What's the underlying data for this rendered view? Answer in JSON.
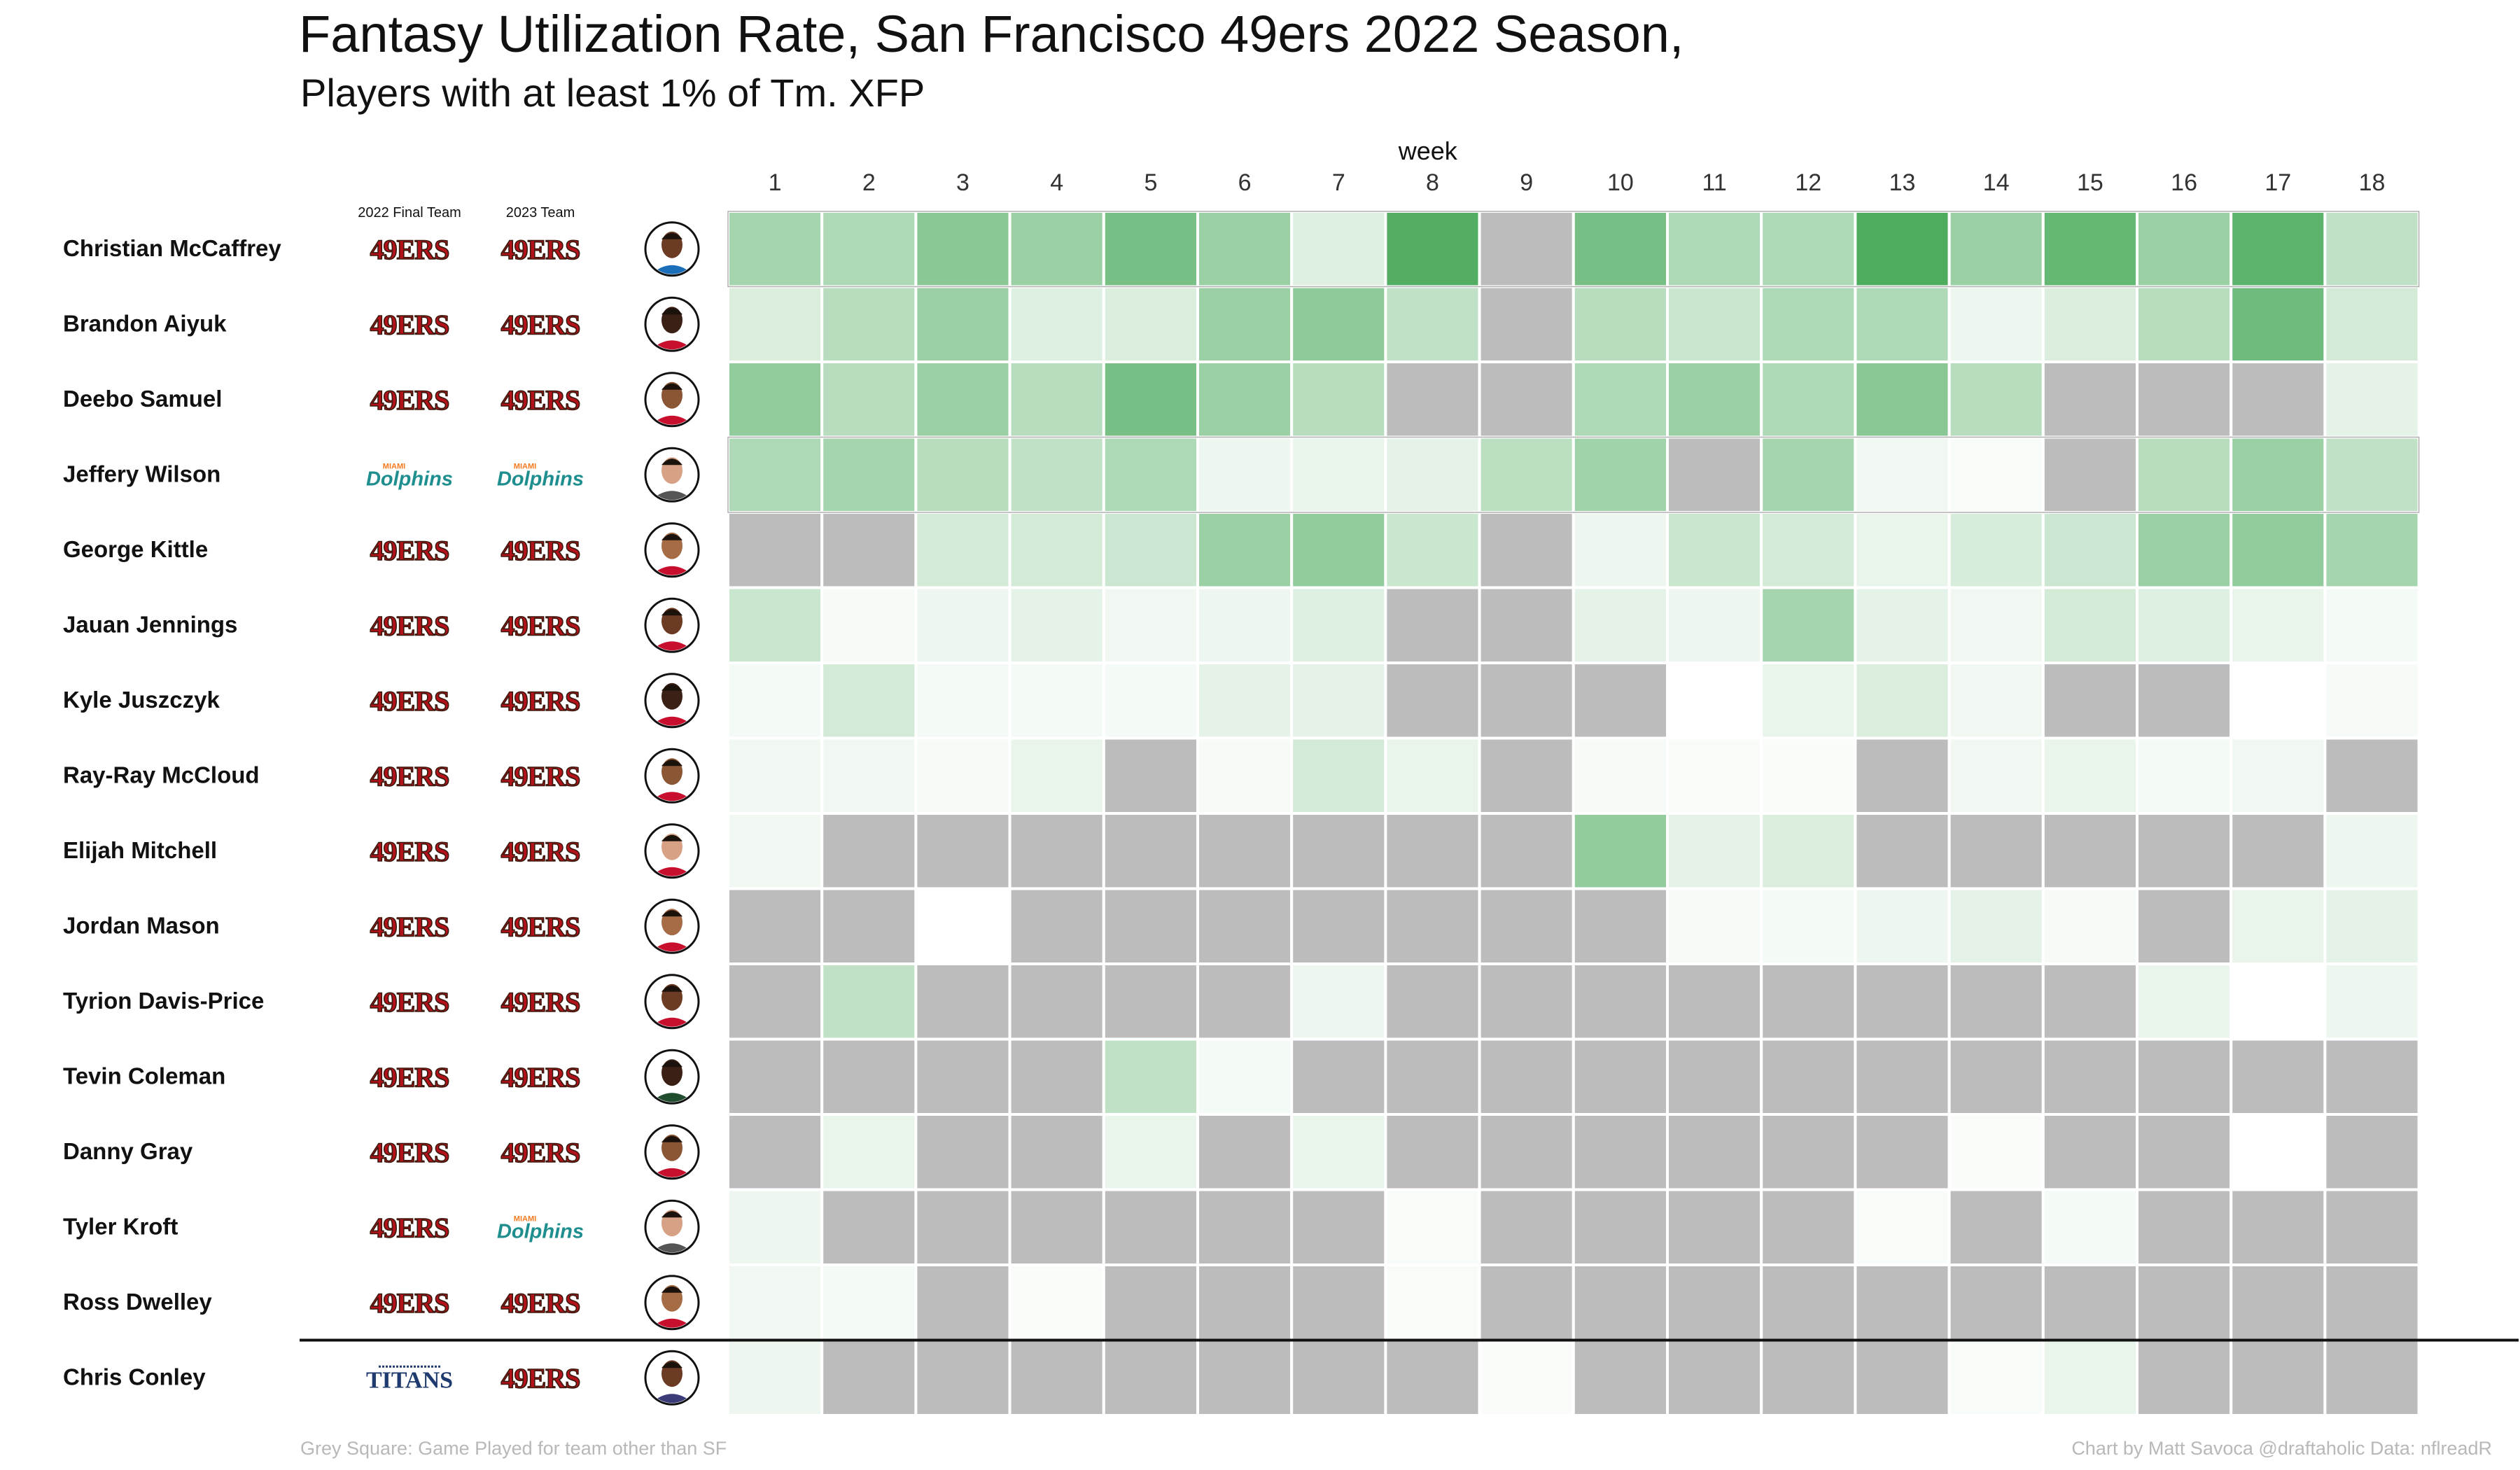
{
  "title": "Fantasy Utilization Rate, San Francisco 49ers 2022 Season,",
  "subtitle": "Players with at least 1% of Tm. XFP",
  "caption_left": "Grey Square: Game Played for team other than SF",
  "caption_right": "Chart by Matt Savoca   @draftaholic   Data: nflreadR",
  "colors": {
    "grey_square": "#bcbcbc",
    "green_low": "#ffffff",
    "green_high": "#4aaa5c",
    "niners_red": "#b3121b",
    "niners_gold": "#3a1a0e",
    "dolphins_teal": "#1e8e8e",
    "dolphins_orange": "#f47a1f",
    "titans_navy": "#1e3a6e"
  },
  "chart_data": {
    "type": "heatmap",
    "x_title": "week",
    "weeks": [
      "1",
      "2",
      "3",
      "4",
      "5",
      "6",
      "7",
      "8",
      "9",
      "10",
      "11",
      "12",
      "13",
      "14",
      "15",
      "16",
      "17",
      "18"
    ],
    "col_header_final": "2022 Final Team",
    "col_header_2023": "2023 Team",
    "value_scale": "utilization intensity 0-1 (estimated from green shading); null = grey square",
    "players": [
      {
        "name": "Christian McCaffrey",
        "team_2022": "49ERS",
        "team_2023": "49ERS",
        "headshot_icon": "player-headshot-icon",
        "values": [
          0.5,
          0.45,
          0.65,
          0.55,
          0.75,
          0.55,
          0.18,
          0.95,
          null,
          0.75,
          0.45,
          0.45,
          0.98,
          0.55,
          0.85,
          0.55,
          0.9,
          0.35
        ]
      },
      {
        "name": "Brandon Aiyuk",
        "team_2022": "49ERS",
        "team_2023": "49ERS",
        "headshot_icon": "player-headshot-icon",
        "values": [
          0.2,
          0.4,
          0.55,
          0.18,
          0.2,
          0.55,
          0.62,
          0.35,
          null,
          0.4,
          0.3,
          0.45,
          0.45,
          0.1,
          0.2,
          0.4,
          0.8,
          0.25
        ]
      },
      {
        "name": "Deebo Samuel",
        "team_2022": "49ERS",
        "team_2023": "49ERS",
        "headshot_icon": "player-headshot-icon",
        "values": [
          0.6,
          0.4,
          0.55,
          0.4,
          0.75,
          0.55,
          0.4,
          null,
          null,
          0.45,
          0.55,
          0.45,
          0.65,
          0.4,
          null,
          null,
          null,
          0.15
        ]
      },
      {
        "name": "Jeffery Wilson",
        "team_2022": "Dolphins",
        "team_2023": "Dolphins",
        "headshot_icon": "player-headshot-icon",
        "values": [
          0.45,
          0.5,
          0.4,
          0.35,
          0.45,
          0.1,
          0.12,
          0.15,
          0.38,
          0.52,
          null,
          0.5,
          0.08,
          0.04,
          null,
          0.4,
          0.55,
          0.35
        ]
      },
      {
        "name": "George Kittle",
        "team_2022": "49ERS",
        "team_2023": "49ERS",
        "headshot_icon": "player-headshot-icon",
        "values": [
          null,
          null,
          0.25,
          0.25,
          0.28,
          0.55,
          0.6,
          0.3,
          null,
          0.1,
          0.3,
          0.25,
          0.12,
          0.22,
          0.28,
          0.55,
          0.6,
          0.5
        ]
      },
      {
        "name": "Jauan Jennings",
        "team_2022": "49ERS",
        "team_2023": "49ERS",
        "headshot_icon": "player-headshot-icon",
        "values": [
          0.3,
          0.05,
          0.1,
          0.15,
          0.08,
          0.1,
          0.18,
          null,
          null,
          0.15,
          0.1,
          0.5,
          0.15,
          0.08,
          0.25,
          0.18,
          0.12,
          0.06
        ]
      },
      {
        "name": "Kyle Juszczyk",
        "team_2022": "49ERS",
        "team_2023": "49ERS",
        "headshot_icon": "player-headshot-icon",
        "values": [
          0.06,
          0.25,
          0.06,
          0.06,
          0.06,
          0.15,
          0.15,
          null,
          null,
          null,
          0.0,
          0.12,
          0.2,
          0.08,
          null,
          null,
          0.0,
          0.05
        ]
      },
      {
        "name": "Ray-Ray McCloud",
        "team_2022": "49ERS",
        "team_2023": "49ERS",
        "headshot_icon": "player-headshot-icon",
        "values": [
          0.08,
          0.08,
          0.05,
          0.12,
          null,
          0.05,
          0.25,
          0.12,
          null,
          0.05,
          0.04,
          0.03,
          null,
          0.08,
          0.12,
          0.06,
          0.08,
          null
        ]
      },
      {
        "name": "Elijah Mitchell",
        "team_2022": "49ERS",
        "team_2023": "49ERS",
        "headshot_icon": "player-headshot-icon",
        "values": [
          0.08,
          null,
          null,
          null,
          null,
          null,
          null,
          null,
          null,
          0.6,
          0.15,
          0.2,
          null,
          null,
          null,
          null,
          null,
          0.1
        ]
      },
      {
        "name": "Jordan Mason",
        "team_2022": "49ERS",
        "team_2023": "49ERS",
        "headshot_icon": "player-headshot-icon",
        "values": [
          null,
          null,
          0.0,
          null,
          null,
          null,
          null,
          null,
          null,
          null,
          0.05,
          0.06,
          0.1,
          0.15,
          0.05,
          null,
          0.12,
          0.15
        ]
      },
      {
        "name": "Tyrion Davis-Price",
        "team_2022": "49ERS",
        "team_2023": "49ERS",
        "headshot_icon": "player-headshot-icon",
        "values": [
          null,
          0.35,
          null,
          null,
          null,
          null,
          0.1,
          null,
          null,
          null,
          null,
          null,
          null,
          null,
          null,
          0.12,
          0.0,
          0.1
        ]
      },
      {
        "name": "Tevin Coleman",
        "team_2022": "49ERS",
        "team_2023": "49ERS",
        "headshot_icon": "player-headshot-icon",
        "values": [
          null,
          null,
          null,
          null,
          0.35,
          0.06,
          null,
          null,
          null,
          null,
          null,
          null,
          null,
          null,
          null,
          null,
          null,
          null
        ]
      },
      {
        "name": "Danny Gray",
        "team_2022": "49ERS",
        "team_2023": "49ERS",
        "headshot_icon": "player-headshot-icon",
        "values": [
          null,
          0.12,
          null,
          null,
          0.12,
          null,
          0.12,
          null,
          null,
          null,
          null,
          null,
          null,
          0.03,
          null,
          null,
          0.0,
          null
        ]
      },
      {
        "name": "Tyler Kroft",
        "team_2022": "49ERS",
        "team_2023": "Dolphins",
        "headshot_icon": "player-headshot-icon",
        "values": [
          0.1,
          null,
          null,
          null,
          null,
          null,
          null,
          0.04,
          null,
          null,
          null,
          null,
          0.04,
          null,
          0.06,
          null,
          null,
          null
        ]
      },
      {
        "name": "Ross Dwelley",
        "team_2022": "49ERS",
        "team_2023": "49ERS",
        "headshot_icon": "player-headshot-icon",
        "values": [
          0.08,
          0.06,
          null,
          0.03,
          null,
          null,
          null,
          0.04,
          null,
          null,
          null,
          null,
          null,
          null,
          null,
          null,
          null,
          null
        ]
      },
      {
        "name": "Chris Conley",
        "team_2022": "TITANS",
        "team_2023": "49ERS",
        "headshot_icon": "player-headshot-icon",
        "values": [
          0.1,
          null,
          null,
          null,
          null,
          null,
          null,
          null,
          0.03,
          null,
          null,
          null,
          null,
          0.04,
          0.12,
          null,
          null,
          null
        ]
      }
    ]
  }
}
